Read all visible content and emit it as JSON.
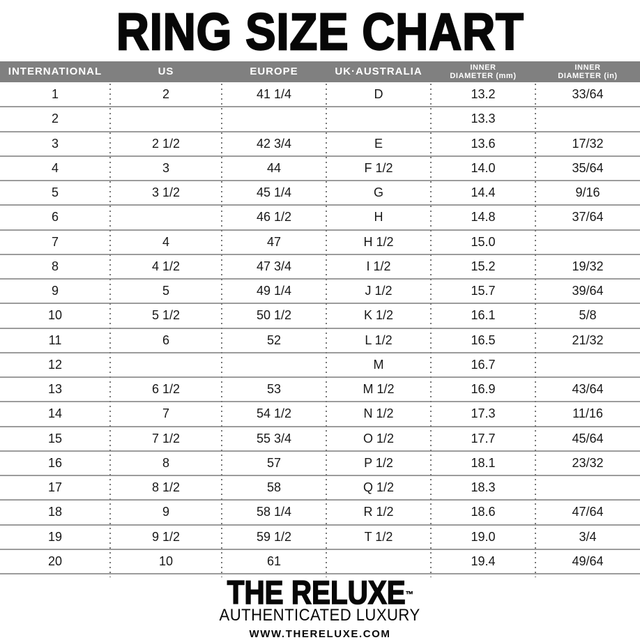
{
  "title": "RING SIZE CHART",
  "table": {
    "headers": [
      [
        "INTERNATIONAL"
      ],
      [
        "US"
      ],
      [
        "EUROPE"
      ],
      [
        "UK·AUSTRALIA"
      ],
      [
        "INNER",
        "DIAMETER (mm)"
      ],
      [
        "INNER",
        "DIAMETER (in)"
      ]
    ],
    "rows": [
      [
        "1",
        "2",
        "41 1/4",
        "D",
        "13.2",
        "33/64"
      ],
      [
        "2",
        "",
        "",
        "",
        "13.3",
        ""
      ],
      [
        "3",
        "2 1/2",
        "42 3/4",
        "E",
        "13.6",
        "17/32"
      ],
      [
        "4",
        "3",
        "44",
        "F 1/2",
        "14.0",
        "35/64"
      ],
      [
        "5",
        "3 1/2",
        "45 1/4",
        "G",
        "14.4",
        "9/16"
      ],
      [
        "6",
        "",
        "46 1/2",
        "H",
        "14.8",
        "37/64"
      ],
      [
        "7",
        "4",
        "47",
        "H 1/2",
        "15.0",
        ""
      ],
      [
        "8",
        "4 1/2",
        "47 3/4",
        "I 1/2",
        "15.2",
        "19/32"
      ],
      [
        "9",
        "5",
        "49 1/4",
        "J 1/2",
        "15.7",
        "39/64"
      ],
      [
        "10",
        "5 1/2",
        "50 1/2",
        "K 1/2",
        "16.1",
        "5/8"
      ],
      [
        "11",
        "6",
        "52",
        "L 1/2",
        "16.5",
        "21/32"
      ],
      [
        "12",
        "",
        "",
        "M",
        "16.7",
        ""
      ],
      [
        "13",
        "6 1/2",
        "53",
        "M 1/2",
        "16.9",
        "43/64"
      ],
      [
        "14",
        "7",
        "54 1/2",
        "N 1/2",
        "17.3",
        "11/16"
      ],
      [
        "15",
        "7 1/2",
        "55 3/4",
        "O 1/2",
        "17.7",
        "45/64"
      ],
      [
        "16",
        "8",
        "57",
        "P 1/2",
        "18.1",
        "23/32"
      ],
      [
        "17",
        "8 1/2",
        "58",
        "Q 1/2",
        "18.3",
        ""
      ],
      [
        "18",
        "9",
        "58 1/4",
        "R 1/2",
        "18.6",
        "47/64"
      ],
      [
        "19",
        "9 1/2",
        "59 1/2",
        "T 1/2",
        "19.0",
        "3/4"
      ],
      [
        "20",
        "10",
        "61",
        "",
        "19.4",
        "49/64"
      ]
    ]
  },
  "footer": {
    "brand": "THE RELUXE",
    "trademark": "™",
    "tagline": "AUTHENTICATED LUXURY",
    "website": "WWW.THERELUXE.COM"
  },
  "colors": {
    "header_bg": "#808080",
    "header_text": "#ffffff",
    "row_line": "#9c9c9c",
    "dotted_line": "#777777",
    "text": "#181818"
  }
}
